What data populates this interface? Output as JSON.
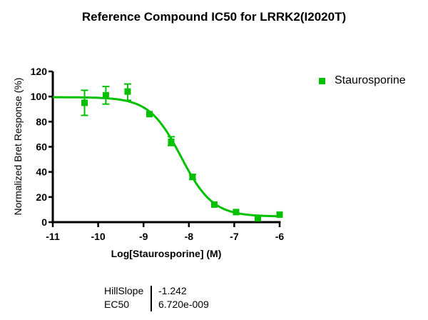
{
  "chart_data": {
    "type": "scatter",
    "title": "Reference Compound IC50 for LRRK2(I2020T)",
    "xlabel": "Log[Staurosporine] (M)",
    "ylabel": "Normalized Bret Response (%)",
    "xlim": [
      -11,
      -6
    ],
    "ylim": [
      0,
      120
    ],
    "xticks": [
      -11,
      -10,
      -9,
      -8,
      -7,
      -6
    ],
    "yticks": [
      0,
      20,
      40,
      60,
      80,
      100,
      120
    ],
    "grid": false,
    "legend_position": "right",
    "series": [
      {
        "name": "Staurosporine",
        "color": "#00c000",
        "marker": "square",
        "points": [
          {
            "x": -10.3,
            "y": 95,
            "err_low": 85,
            "err_high": 105
          },
          {
            "x": -9.83,
            "y": 101,
            "err_low": 94,
            "err_high": 108
          },
          {
            "x": -9.35,
            "y": 104,
            "err_low": 97,
            "err_high": 110
          },
          {
            "x": -8.87,
            "y": 86,
            "err_low": 85,
            "err_high": 87
          },
          {
            "x": -8.39,
            "y": 64,
            "err_low": 61,
            "err_high": 68
          },
          {
            "x": -7.92,
            "y": 36,
            "err_low": 34,
            "err_high": 38
          },
          {
            "x": -7.44,
            "y": 14,
            "err_low": 13,
            "err_high": 15
          },
          {
            "x": -6.96,
            "y": 8,
            "err_low": 6,
            "err_high": 9
          },
          {
            "x": -6.48,
            "y": 3,
            "err_low": 2,
            "err_high": 4
          },
          {
            "x": -6.0,
            "y": 6,
            "err_low": 5,
            "err_high": 7
          }
        ],
        "fit": {
          "model": "log(inhibitor) vs. response -- Variable slope",
          "top": 99.5,
          "bottom": 4.5,
          "log_ec50": -8.1726,
          "hill_slope": -1.242
        }
      }
    ],
    "stats_table": [
      {
        "label": "HillSlope",
        "value": "-1.242"
      },
      {
        "label": "EC50",
        "value": "6.720e-009"
      }
    ]
  },
  "legend": {
    "label": "Staurosporine"
  },
  "stats": {
    "hillslope_label": "HillSlope",
    "hillslope_value": "-1.242",
    "ec50_label": "EC50",
    "ec50_value": "6.720e-009"
  }
}
